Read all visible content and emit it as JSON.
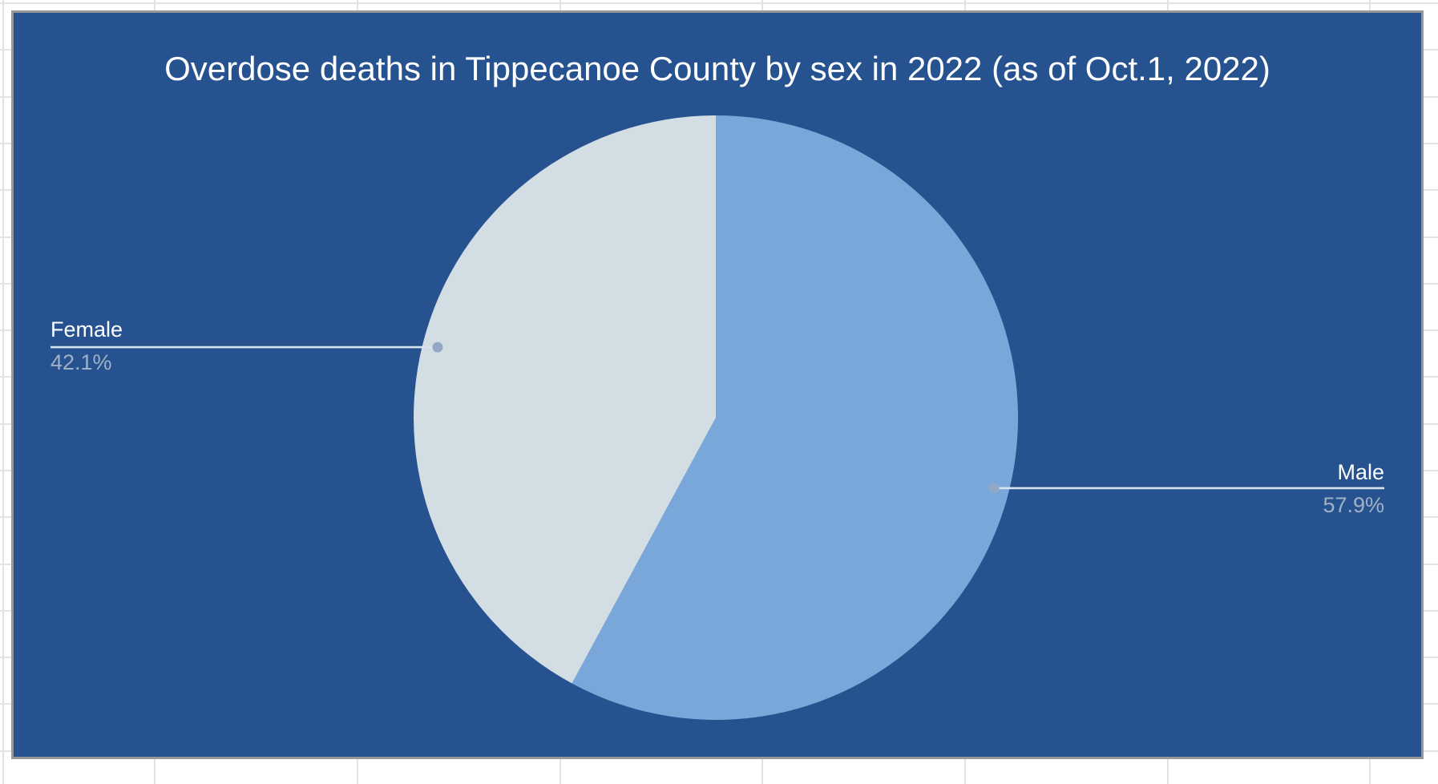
{
  "chart_data": {
    "type": "pie",
    "title": "Overdose deaths in Tippecanoe County by sex in 2022 (as of Oct.1, 2022)",
    "categories": [
      "Male",
      "Female"
    ],
    "values": [
      57.9,
      42.1
    ],
    "slices": [
      {
        "label": "Male",
        "value": 57.9,
        "percent_label": "57.9%",
        "color": "#7aa7da"
      },
      {
        "label": "Female",
        "value": 42.1,
        "percent_label": "42.1%",
        "color": "#d3dde4"
      }
    ],
    "unit": "percent",
    "start_angle_deg": 0,
    "direction": "clockwise",
    "legend_position": "callout-labels",
    "background_color": "#26538f",
    "title_color": "#ffffff",
    "label_color": "#ffffff",
    "percent_color": "#a0b1c7",
    "leader_line_color": "#d8e3ef",
    "leader_dot_color": "#93a8c7"
  },
  "spreadsheet": {
    "background": "#ffffff",
    "gridline_color": "#e2e3e4",
    "chart_border_color": "#979797"
  }
}
